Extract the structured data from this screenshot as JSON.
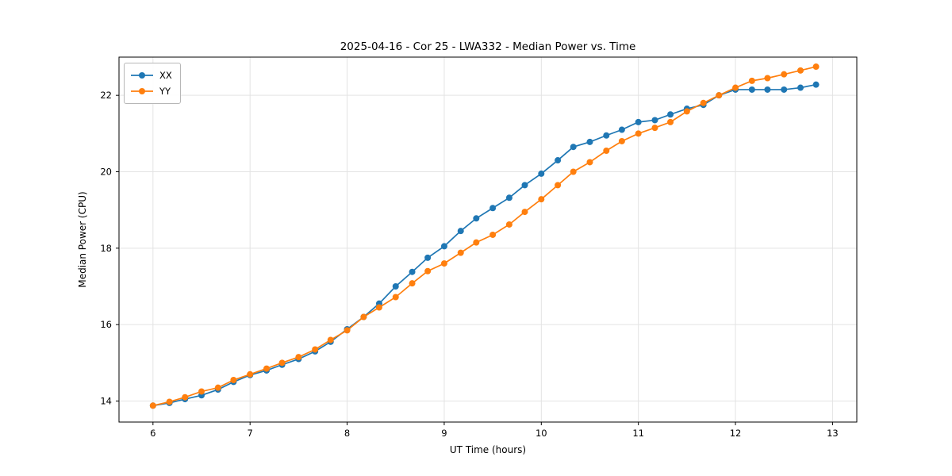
{
  "chart_data": {
    "type": "line",
    "title": "2025-04-16 - Cor 25 - LWA332 - Median Power vs. Time",
    "xlabel": "UT Time (hours)",
    "ylabel": "Median Power (CPU)",
    "xlim": [
      5.65,
      13.25
    ],
    "ylim": [
      13.45,
      23.0
    ],
    "xticks": [
      6,
      7,
      8,
      9,
      10,
      11,
      12,
      13
    ],
    "yticks": [
      14,
      16,
      18,
      20,
      22
    ],
    "grid": true,
    "grid_color": "#e3e3e3",
    "axis_color": "#000000",
    "legend_position": "upper-left",
    "x": [
      6.0,
      6.17,
      6.33,
      6.5,
      6.67,
      6.83,
      7.0,
      7.17,
      7.33,
      7.5,
      7.67,
      7.83,
      8.0,
      8.17,
      8.33,
      8.5,
      8.67,
      8.83,
      9.0,
      9.17,
      9.33,
      9.5,
      9.67,
      9.83,
      10.0,
      10.17,
      10.33,
      10.5,
      10.67,
      10.83,
      11.0,
      11.17,
      11.33,
      11.5,
      11.67,
      11.83,
      12.0,
      12.17,
      12.33,
      12.5,
      12.67,
      12.83
    ],
    "series": [
      {
        "name": "XX",
        "color": "#1f77b4",
        "values": [
          13.88,
          13.95,
          14.05,
          14.15,
          14.3,
          14.5,
          14.68,
          14.8,
          14.95,
          15.1,
          15.3,
          15.55,
          15.88,
          16.2,
          16.55,
          17.0,
          17.38,
          17.75,
          18.05,
          18.45,
          18.78,
          19.05,
          19.32,
          19.65,
          19.95,
          20.3,
          20.65,
          20.78,
          20.95,
          21.1,
          21.3,
          21.35,
          21.5,
          21.65,
          21.75,
          22.0,
          22.15,
          22.15,
          22.15,
          22.15,
          22.2,
          22.28
        ]
      },
      {
        "name": "YY",
        "color": "#ff7f0e",
        "values": [
          13.88,
          13.98,
          14.1,
          14.25,
          14.35,
          14.55,
          14.7,
          14.85,
          15.0,
          15.15,
          15.35,
          15.6,
          15.85,
          16.2,
          16.45,
          16.72,
          17.08,
          17.4,
          17.6,
          17.88,
          18.15,
          18.35,
          18.62,
          18.95,
          19.28,
          19.65,
          20.0,
          20.25,
          20.55,
          20.8,
          21.0,
          21.15,
          21.3,
          21.58,
          21.8,
          22.0,
          22.2,
          22.38,
          22.45,
          22.55,
          22.65,
          22.75
        ]
      }
    ]
  }
}
